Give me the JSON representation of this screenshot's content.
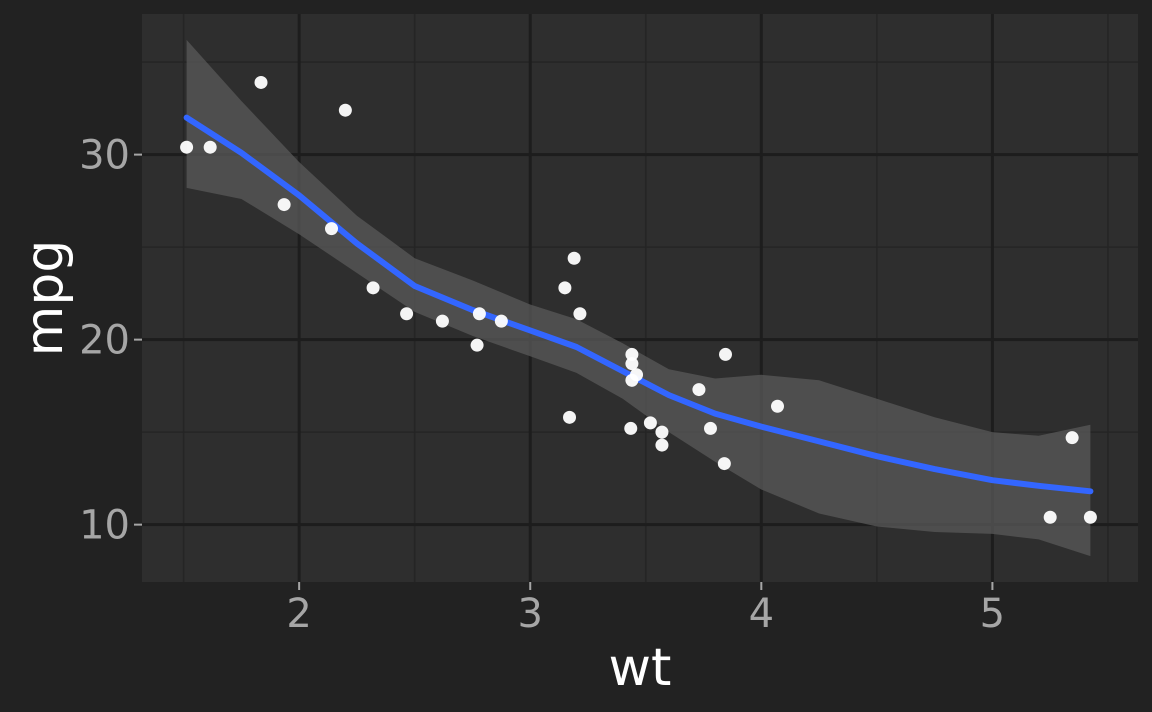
{
  "chart_data": {
    "type": "scatter",
    "xlabel": "wt",
    "ylabel": "mpg",
    "xlim": [
      1.32,
      5.63
    ],
    "ylim": [
      6.9,
      37.6
    ],
    "x_ticks": [
      2,
      3,
      4,
      5
    ],
    "x_tick_labels": [
      "2",
      "3",
      "4",
      "5"
    ],
    "y_ticks": [
      10,
      20,
      30
    ],
    "y_tick_labels": [
      "10",
      "20",
      "30"
    ],
    "grid": true,
    "legend": "none",
    "points": [
      {
        "x": 1.513,
        "y": 30.4
      },
      {
        "x": 1.615,
        "y": 30.4
      },
      {
        "x": 1.835,
        "y": 33.9
      },
      {
        "x": 1.935,
        "y": 27.3
      },
      {
        "x": 2.14,
        "y": 26.0
      },
      {
        "x": 2.2,
        "y": 32.4
      },
      {
        "x": 2.32,
        "y": 22.8
      },
      {
        "x": 2.465,
        "y": 21.4
      },
      {
        "x": 2.62,
        "y": 21.0
      },
      {
        "x": 2.77,
        "y": 19.7
      },
      {
        "x": 2.78,
        "y": 21.4
      },
      {
        "x": 2.875,
        "y": 21.0
      },
      {
        "x": 3.15,
        "y": 22.8
      },
      {
        "x": 3.17,
        "y": 15.8
      },
      {
        "x": 3.19,
        "y": 24.4
      },
      {
        "x": 3.215,
        "y": 21.4
      },
      {
        "x": 3.435,
        "y": 15.2
      },
      {
        "x": 3.44,
        "y": 17.8
      },
      {
        "x": 3.44,
        "y": 18.7
      },
      {
        "x": 3.44,
        "y": 19.2
      },
      {
        "x": 3.46,
        "y": 18.1
      },
      {
        "x": 3.52,
        "y": 15.5
      },
      {
        "x": 3.57,
        "y": 15.0
      },
      {
        "x": 3.57,
        "y": 14.3
      },
      {
        "x": 3.73,
        "y": 17.3
      },
      {
        "x": 3.78,
        "y": 15.2
      },
      {
        "x": 3.84,
        "y": 13.3
      },
      {
        "x": 3.845,
        "y": 19.2
      },
      {
        "x": 4.07,
        "y": 16.4
      },
      {
        "x": 5.25,
        "y": 10.4
      },
      {
        "x": 5.345,
        "y": 14.7
      },
      {
        "x": 5.424,
        "y": 10.4
      }
    ],
    "smooth": {
      "method": "loess",
      "x": [
        1.513,
        1.75,
        2.0,
        2.25,
        2.5,
        2.75,
        3.0,
        3.2,
        3.4,
        3.6,
        3.8,
        4.0,
        4.25,
        4.5,
        4.75,
        5.0,
        5.2,
        5.424
      ],
      "y": [
        32.0,
        30.1,
        27.8,
        25.2,
        22.9,
        21.6,
        20.5,
        19.6,
        18.3,
        17.0,
        16.0,
        15.3,
        14.5,
        13.7,
        13.0,
        12.4,
        12.1,
        11.8
      ],
      "lower": [
        28.2,
        27.6,
        25.7,
        23.6,
        21.5,
        20.2,
        19.1,
        18.2,
        16.8,
        15.0,
        13.4,
        11.9,
        10.6,
        9.9,
        9.6,
        9.5,
        9.2,
        8.3
      ],
      "upper": [
        36.2,
        32.9,
        29.6,
        26.7,
        24.4,
        23.2,
        21.9,
        21.1,
        19.8,
        18.4,
        17.9,
        18.1,
        17.8,
        16.8,
        15.8,
        15.0,
        14.8,
        15.4
      ]
    },
    "colors": {
      "background": "#222222",
      "panel": "#2e2e2e",
      "grid_major": "#1d1d1d",
      "grid_minor": "#252525",
      "points": "#ffffff",
      "line": "#3366ff",
      "ribbon": "#5a5a5a",
      "tick_text": "#a6a6a6",
      "title_text": "#ffffff"
    }
  }
}
